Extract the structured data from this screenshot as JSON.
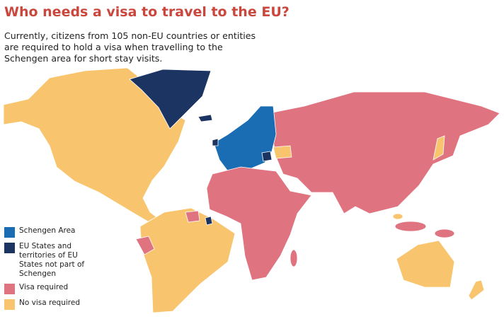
{
  "title": "Who needs a visa to travel to the EU?",
  "subtitle": "Currently, citizens from 105 non-EU countries or entities are required to hold a visa when travelling to the Schengen area for short stay visits.",
  "legend": [
    {
      "label": "Schengen Area",
      "color": "#1a6db3"
    },
    {
      "label": "EU States and territories of EU States not part of Schengen",
      "color": "#1b3461"
    },
    {
      "label": "Visa required",
      "color": "#e07380"
    },
    {
      "label": "No visa required",
      "color": "#f9c46e"
    }
  ]
}
